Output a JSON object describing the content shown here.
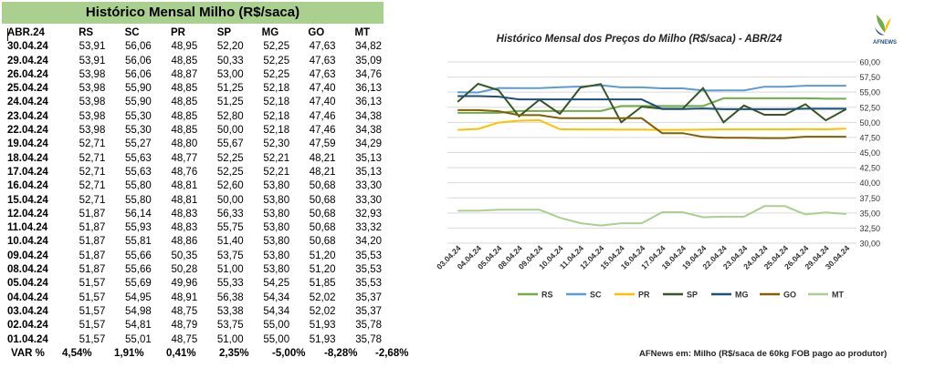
{
  "table": {
    "title": "Histórico Mensal Milho (R$/saca)",
    "headers": [
      "ABR.24",
      "RS",
      "SC",
      "PR",
      "SP",
      "MG",
      "GO",
      "MT"
    ],
    "rows": [
      [
        "30.04.24",
        "53,91",
        "56,06",
        "48,95",
        "52,20",
        "52,25",
        "47,63",
        "34,82"
      ],
      [
        "29.04.24",
        "53,91",
        "56,06",
        "48,85",
        "50,33",
        "52,25",
        "47,63",
        "35,09"
      ],
      [
        "26.04.24",
        "53,98",
        "56,06",
        "48,87",
        "53,00",
        "52,25",
        "47,63",
        "34,76"
      ],
      [
        "25.04.24",
        "53,98",
        "55,90",
        "48,85",
        "51,25",
        "52,18",
        "47,40",
        "36,13"
      ],
      [
        "24.04.24",
        "53,98",
        "55,90",
        "48,85",
        "51,25",
        "52,18",
        "47,40",
        "36,13"
      ],
      [
        "23.04.24",
        "53,98",
        "55,30",
        "48,85",
        "52,80",
        "52,18",
        "47,46",
        "34,38"
      ],
      [
        "22.04.24",
        "53,98",
        "55,30",
        "48,85",
        "50,00",
        "52,18",
        "47,46",
        "34,38"
      ],
      [
        "19.04.24",
        "52,71",
        "55,27",
        "48,80",
        "55,67",
        "52,30",
        "47,59",
        "34,29"
      ],
      [
        "18.04.24",
        "52,71",
        "55,63",
        "48,77",
        "52,25",
        "52,21",
        "48,21",
        "35,13"
      ],
      [
        "17.04.24",
        "52,71",
        "55,63",
        "48,76",
        "52,25",
        "52,21",
        "48,21",
        "35,13"
      ],
      [
        "16.04.24",
        "52,71",
        "55,80",
        "48,81",
        "52,60",
        "53,80",
        "50,68",
        "33,30"
      ],
      [
        "15.04.24",
        "52,71",
        "55,80",
        "48,81",
        "50,00",
        "53,80",
        "50,68",
        "33,30"
      ],
      [
        "12.04.24",
        "51,87",
        "56,14",
        "48,83",
        "56,33",
        "53,80",
        "50,68",
        "32,93"
      ],
      [
        "11.04.24",
        "51,87",
        "55,93",
        "48,83",
        "55,75",
        "53,80",
        "50,68",
        "33,32"
      ],
      [
        "10.04.24",
        "51,87",
        "55,81",
        "48,86",
        "51,40",
        "53,80",
        "50,68",
        "34,20"
      ],
      [
        "09.04.24",
        "51,87",
        "55,66",
        "50,35",
        "53,75",
        "53,80",
        "51,20",
        "35,53"
      ],
      [
        "08.04.24",
        "51,87",
        "55,66",
        "50,28",
        "51,00",
        "53,80",
        "51,20",
        "35,53"
      ],
      [
        "05.04.24",
        "51,57",
        "55,69",
        "49,96",
        "55,33",
        "54,25",
        "51,85",
        "35,53"
      ],
      [
        "04.04.24",
        "51,57",
        "54,95",
        "48,91",
        "56,38",
        "54,34",
        "52,02",
        "35,37"
      ],
      [
        "03.04.24",
        "51,57",
        "54,98",
        "48,75",
        "53,38",
        "54,34",
        "52,02",
        "35,37"
      ],
      [
        "02.04.24",
        "51,57",
        "54,81",
        "48,79",
        "53,75",
        "55,00",
        "51,93",
        "35,78"
      ],
      [
        "01.04.24",
        "51,57",
        "55,01",
        "48,75",
        "51,00",
        "55,00",
        "51,93",
        "35,78"
      ]
    ],
    "var_label": "VAR %",
    "var_values": [
      "4,54%",
      "1,91%",
      "0,41%",
      "2,35%",
      "-5,00%",
      "-8,28%",
      "-2,68%"
    ]
  },
  "chart_data": {
    "type": "line",
    "title": "Histórico Mensal dos Preços do Milho (R$/saca) - ABR/24",
    "x": [
      "03.04.24",
      "04.04.24",
      "05.04.24",
      "08.04.24",
      "09.04.24",
      "10.04.24",
      "11.04.24",
      "12.04.24",
      "15.04.24",
      "16.04.24",
      "17.04.24",
      "18.04.24",
      "19.04.24",
      "22.04.24",
      "23.04.24",
      "24.04.24",
      "25.04.24",
      "26.04.24",
      "29.04.24",
      "30.04.24"
    ],
    "ylim": [
      30,
      60
    ],
    "yticks": [
      "60,00",
      "57,50",
      "55,00",
      "52,50",
      "50,00",
      "47,50",
      "45,00",
      "42,50",
      "40,00",
      "37,50",
      "35,00",
      "32,50",
      "30,00"
    ],
    "grid": true,
    "legend_position": "bottom",
    "series": [
      {
        "name": "RS",
        "color": "#70ad47",
        "values": [
          51.57,
          51.57,
          51.57,
          51.87,
          51.87,
          51.87,
          51.87,
          51.87,
          52.71,
          52.71,
          52.71,
          52.71,
          52.71,
          53.98,
          53.98,
          53.98,
          53.98,
          53.98,
          53.91,
          53.91
        ]
      },
      {
        "name": "SC",
        "color": "#5b9bd5",
        "values": [
          54.98,
          54.95,
          55.69,
          55.66,
          55.66,
          55.81,
          55.93,
          56.14,
          55.8,
          55.8,
          55.63,
          55.63,
          55.27,
          55.3,
          55.3,
          55.9,
          55.9,
          56.06,
          56.06,
          56.06
        ]
      },
      {
        "name": "PR",
        "color": "#ffc000",
        "values": [
          48.75,
          48.91,
          49.96,
          50.28,
          50.35,
          48.86,
          48.83,
          48.83,
          48.81,
          48.81,
          48.76,
          48.77,
          48.8,
          48.85,
          48.85,
          48.85,
          48.85,
          48.87,
          48.85,
          48.95
        ]
      },
      {
        "name": "SP",
        "color": "#375623",
        "values": [
          53.38,
          56.38,
          55.33,
          51.0,
          53.75,
          51.4,
          55.75,
          56.33,
          50.0,
          52.6,
          52.25,
          52.25,
          55.67,
          50.0,
          52.8,
          51.25,
          51.25,
          53.0,
          50.33,
          52.2
        ]
      },
      {
        "name": "MG",
        "color": "#1f4e79",
        "values": [
          54.34,
          54.34,
          54.25,
          53.8,
          53.8,
          53.8,
          53.8,
          53.8,
          53.8,
          53.8,
          52.21,
          52.21,
          52.3,
          52.18,
          52.18,
          52.18,
          52.18,
          52.25,
          52.25,
          52.25
        ]
      },
      {
        "name": "GO",
        "color": "#806000",
        "values": [
          52.02,
          52.02,
          51.85,
          51.2,
          51.2,
          50.68,
          50.68,
          50.68,
          50.68,
          50.68,
          48.21,
          48.21,
          47.59,
          47.46,
          47.46,
          47.4,
          47.4,
          47.63,
          47.63,
          47.63
        ]
      },
      {
        "name": "MT",
        "color": "#a9d08e",
        "values": [
          35.37,
          35.37,
          35.53,
          35.53,
          35.53,
          34.2,
          33.32,
          32.93,
          33.3,
          33.3,
          35.13,
          35.13,
          34.29,
          34.38,
          34.38,
          36.13,
          36.13,
          34.76,
          35.09,
          34.82
        ]
      }
    ]
  },
  "footer": "AFNews em: Milho (R$/saca de 60kg FOB pago ao produtor)",
  "logo_text": "AFNEWS"
}
